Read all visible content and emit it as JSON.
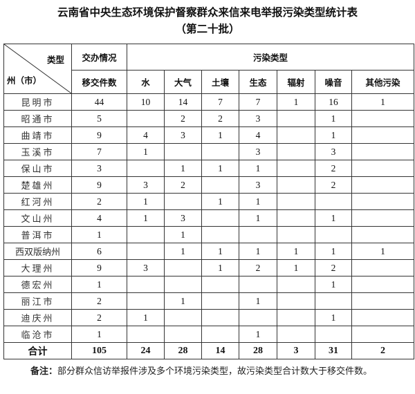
{
  "title": "云南省中央生态环境保护督察群众来信来电举报污染类型统计表",
  "subtitle": "（第二十批）",
  "header": {
    "corner_top": "类型",
    "corner_bottom": "州（市）",
    "group_assigned": "交办情况",
    "group_pollution": "污染类型",
    "columns": [
      "移交件数",
      "水",
      "大气",
      "土壤",
      "生态",
      "辐射",
      "噪音",
      "其他污染"
    ]
  },
  "rows": [
    {
      "region": "昆明市",
      "values": [
        "44",
        "10",
        "14",
        "7",
        "7",
        "1",
        "16",
        "1"
      ]
    },
    {
      "region": "昭通市",
      "values": [
        "5",
        "",
        "2",
        "2",
        "3",
        "",
        "1",
        ""
      ]
    },
    {
      "region": "曲靖市",
      "values": [
        "9",
        "4",
        "3",
        "1",
        "4",
        "",
        "1",
        ""
      ]
    },
    {
      "region": "玉溪市",
      "values": [
        "7",
        "1",
        "",
        "",
        "3",
        "",
        "3",
        ""
      ]
    },
    {
      "region": "保山市",
      "values": [
        "3",
        "",
        "1",
        "1",
        "1",
        "",
        "2",
        ""
      ]
    },
    {
      "region": "楚雄州",
      "values": [
        "9",
        "3",
        "2",
        "",
        "3",
        "",
        "2",
        ""
      ]
    },
    {
      "region": "红河州",
      "values": [
        "2",
        "1",
        "",
        "1",
        "1",
        "",
        "",
        ""
      ]
    },
    {
      "region": "文山州",
      "values": [
        "4",
        "1",
        "3",
        "",
        "1",
        "",
        "1",
        ""
      ]
    },
    {
      "region": "普洱市",
      "values": [
        "1",
        "",
        "1",
        "",
        "",
        "",
        "",
        ""
      ]
    },
    {
      "region": "西双版纳州",
      "values": [
        "6",
        "",
        "1",
        "1",
        "1",
        "1",
        "1",
        "1"
      ]
    },
    {
      "region": "大理州",
      "values": [
        "9",
        "3",
        "",
        "1",
        "2",
        "1",
        "2",
        ""
      ]
    },
    {
      "region": "德宏州",
      "values": [
        "1",
        "",
        "",
        "",
        "",
        "",
        "1",
        ""
      ]
    },
    {
      "region": "丽江市",
      "values": [
        "2",
        "",
        "1",
        "",
        "1",
        "",
        "",
        ""
      ]
    },
    {
      "region": "迪庆州",
      "values": [
        "2",
        "1",
        "",
        "",
        "",
        "",
        "1",
        ""
      ]
    },
    {
      "region": "临沧市",
      "values": [
        "1",
        "",
        "",
        "",
        "1",
        "",
        "",
        ""
      ]
    }
  ],
  "total": {
    "region": "合计",
    "values": [
      "105",
      "24",
      "28",
      "14",
      "28",
      "3",
      "31",
      "2"
    ]
  },
  "note": {
    "label": "备注：",
    "text": "部分群众信访举报件涉及多个环境污染类型，故污染类型合计数大于移交件数。"
  }
}
